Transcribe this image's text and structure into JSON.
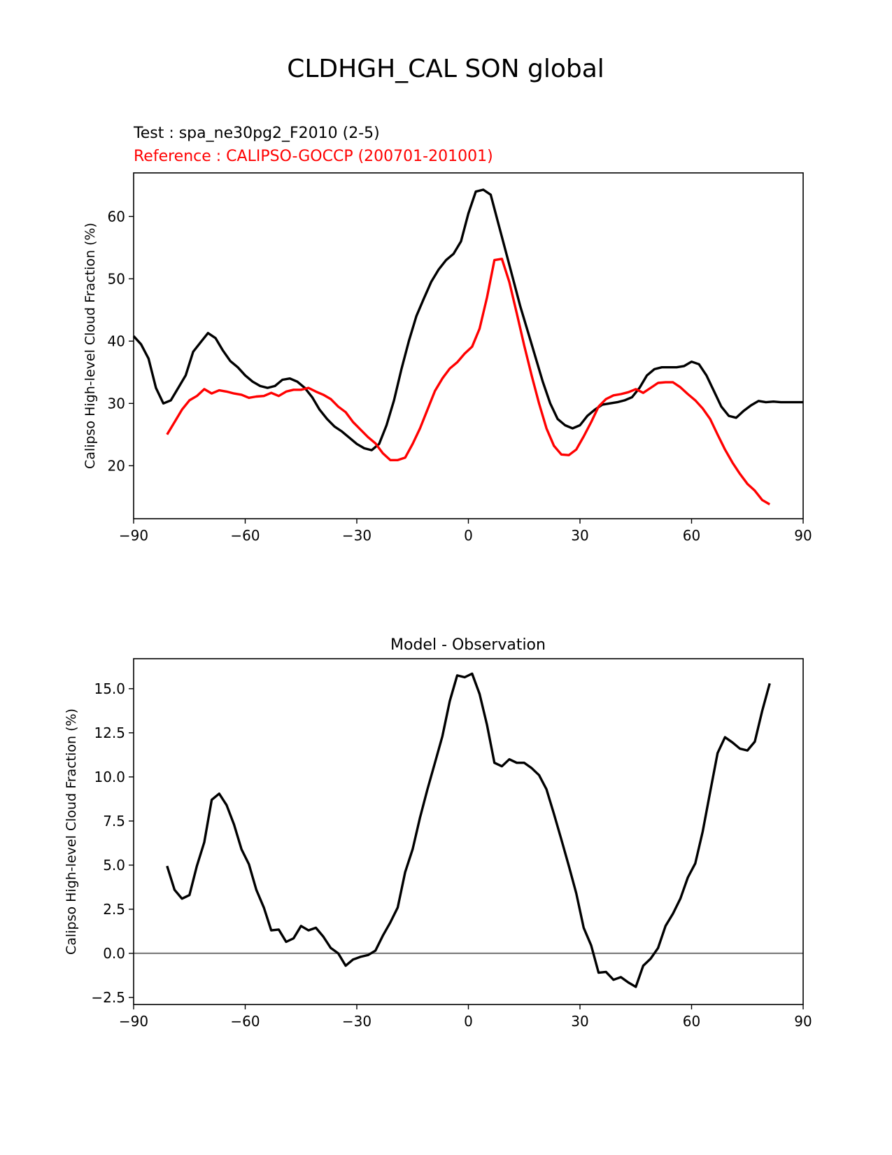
{
  "figure": {
    "title": "CLDHGH_CAL SON global",
    "test_label": "Test : spa_ne30pg2_F2010 (2-5)",
    "reference_label": "Reference : CALIPSO-GOCCP (200701-201001)",
    "colors": {
      "test": "#000000",
      "reference": "#ff0000",
      "zero_line": "#808080"
    }
  },
  "chart_data": [
    {
      "type": "line",
      "title": "",
      "xlabel": "",
      "ylabel": "Calipso High-level Cloud Fraction (%)",
      "xlim": [
        -90,
        90
      ],
      "ylim": [
        11.5,
        67
      ],
      "xticks": [
        -90,
        -60,
        -30,
        0,
        30,
        60,
        90
      ],
      "xtick_labels": [
        "−90",
        "−60",
        "−30",
        "0",
        "30",
        "60",
        "90"
      ],
      "yticks": [
        20,
        30,
        40,
        50,
        60
      ],
      "ytick_labels": [
        "20",
        "30",
        "40",
        "50",
        "60"
      ],
      "series": [
        {
          "name": "Test",
          "color": "#000000",
          "x": [
            -90,
            -88,
            -86,
            -84,
            -82,
            -80,
            -78,
            -76,
            -74,
            -72,
            -70,
            -68,
            -66,
            -64,
            -62,
            -60,
            -58,
            -56,
            -54,
            -52,
            -50,
            -48,
            -46,
            -44,
            -42,
            -40,
            -38,
            -36,
            -34,
            -32,
            -30,
            -28,
            -26,
            -24,
            -22,
            -20,
            -18,
            -16,
            -14,
            -12,
            -10,
            -8,
            -6,
            -4,
            -2,
            0,
            2,
            4,
            6,
            8,
            10,
            12,
            14,
            16,
            18,
            20,
            22,
            24,
            26,
            28,
            30,
            32,
            34,
            36,
            38,
            40,
            42,
            44,
            46,
            48,
            50,
            52,
            54,
            56,
            58,
            60,
            62,
            64,
            66,
            68,
            70,
            72,
            74,
            76,
            78,
            80,
            82,
            84,
            86,
            88,
            90
          ],
          "y": [
            40.8,
            39.5,
            37.2,
            32.5,
            30.0,
            30.5,
            32.5,
            34.5,
            38.3,
            39.8,
            41.3,
            40.5,
            38.5,
            36.8,
            35.8,
            34.5,
            33.5,
            32.8,
            32.5,
            32.8,
            33.8,
            34.0,
            33.5,
            32.5,
            31.0,
            29.0,
            27.5,
            26.3,
            25.5,
            24.5,
            23.5,
            22.8,
            22.5,
            23.5,
            26.5,
            30.5,
            35.5,
            40.0,
            44.0,
            46.8,
            49.5,
            51.5,
            53.0,
            54.0,
            56.0,
            60.5,
            64.0,
            64.3,
            63.5,
            59.0,
            54.5,
            50.0,
            45.5,
            41.5,
            37.5,
            33.5,
            30.0,
            27.5,
            26.5,
            26.0,
            26.5,
            28.0,
            29.0,
            29.8,
            30.0,
            30.2,
            30.5,
            31.0,
            32.5,
            34.5,
            35.5,
            35.8,
            35.8,
            35.8,
            36.0,
            36.7,
            36.3,
            34.5,
            32.0,
            29.5,
            28.0,
            27.7,
            28.8,
            29.7,
            30.4,
            30.2,
            30.3,
            30.2,
            30.2,
            30.2,
            30.2
          ]
        },
        {
          "name": "Reference",
          "color": "#ff0000",
          "x": [
            -81,
            -79,
            -77,
            -75,
            -73,
            -71,
            -69,
            -67,
            -65,
            -63,
            -61,
            -59,
            -57,
            -55,
            -53,
            -51,
            -49,
            -47,
            -45,
            -43,
            -41,
            -39,
            -37,
            -35,
            -33,
            -31,
            -29,
            -27,
            -25,
            -23,
            -21,
            -19,
            -17,
            -15,
            -13,
            -11,
            -9,
            -7,
            -5,
            -3,
            -1,
            1,
            3,
            5,
            7,
            9,
            11,
            13,
            15,
            17,
            19,
            21,
            23,
            25,
            27,
            29,
            31,
            33,
            35,
            37,
            39,
            41,
            43,
            45,
            47,
            49,
            51,
            53,
            55,
            57,
            59,
            61,
            63,
            65,
            67,
            69,
            71,
            73,
            75,
            77,
            79,
            81
          ],
          "y": [
            25.0,
            27.0,
            29.0,
            30.5,
            31.2,
            32.3,
            31.6,
            32.1,
            31.9,
            31.6,
            31.4,
            30.9,
            31.1,
            31.2,
            31.7,
            31.2,
            31.9,
            32.2,
            32.2,
            32.5,
            31.9,
            31.4,
            30.7,
            29.5,
            28.6,
            27.0,
            25.8,
            24.6,
            23.6,
            22.0,
            20.9,
            20.9,
            21.3,
            23.5,
            26.0,
            29.0,
            32.0,
            34.0,
            35.6,
            36.6,
            38.0,
            39.1,
            42.0,
            47.0,
            53.0,
            53.2,
            49.5,
            44.5,
            39.3,
            34.5,
            30.0,
            26.0,
            23.2,
            21.8,
            21.7,
            22.6,
            24.7,
            27.0,
            29.5,
            30.7,
            31.3,
            31.5,
            31.8,
            32.3,
            31.7,
            32.5,
            33.3,
            33.4,
            33.4,
            32.6,
            31.5,
            30.5,
            29.2,
            27.5,
            25.0,
            22.6,
            20.5,
            18.7,
            17.1,
            16.0,
            14.5,
            13.8
          ]
        }
      ]
    },
    {
      "type": "line",
      "title": "Model - Observation",
      "xlabel": "",
      "ylabel": "Calipso High-level Cloud Fraction (%)",
      "xlim": [
        -90,
        90
      ],
      "ylim": [
        -2.9,
        16.7
      ],
      "xticks": [
        -90,
        -60,
        -30,
        0,
        30,
        60,
        90
      ],
      "xtick_labels": [
        "−90",
        "−60",
        "−30",
        "0",
        "30",
        "60",
        "90"
      ],
      "yticks": [
        -2.5,
        0.0,
        2.5,
        5.0,
        7.5,
        10.0,
        12.5,
        15.0
      ],
      "ytick_labels": [
        "−2.5",
        "0.0",
        "2.5",
        "5.0",
        "7.5",
        "10.0",
        "12.5",
        "15.0"
      ],
      "zero_line": 0,
      "series": [
        {
          "name": "Model - Observation",
          "color": "#000000",
          "x": [
            -81,
            -79,
            -77,
            -75,
            -73,
            -71,
            -69,
            -67,
            -65,
            -63,
            -61,
            -59,
            -57,
            -55,
            -53,
            -51,
            -49,
            -47,
            -45,
            -43,
            -41,
            -39,
            -37,
            -35,
            -33,
            -31,
            -29,
            -27,
            -25,
            -23,
            -21,
            -19,
            -17,
            -15,
            -13,
            -11,
            -9,
            -7,
            -5,
            -3,
            -1,
            1,
            3,
            5,
            7,
            9,
            11,
            13,
            15,
            17,
            19,
            21,
            23,
            25,
            27,
            29,
            31,
            33,
            35,
            37,
            39,
            41,
            43,
            45,
            47,
            49,
            51,
            53,
            55,
            57,
            59,
            61,
            63,
            65,
            67,
            69,
            71,
            73,
            75,
            77,
            79,
            81
          ],
          "y": [
            4.95,
            3.6,
            3.1,
            3.3,
            4.95,
            6.3,
            8.7,
            9.05,
            8.4,
            7.3,
            5.9,
            5.05,
            3.6,
            2.6,
            1.3,
            1.35,
            0.65,
            0.85,
            1.55,
            1.3,
            1.45,
            0.95,
            0.3,
            0.0,
            -0.7,
            -0.35,
            -0.2,
            -0.1,
            0.15,
            1.0,
            1.75,
            2.6,
            4.6,
            5.9,
            7.7,
            9.3,
            10.8,
            12.3,
            14.3,
            15.75,
            15.65,
            15.85,
            14.7,
            12.95,
            10.8,
            10.6,
            11.0,
            10.8,
            10.8,
            10.5,
            10.1,
            9.3,
            7.9,
            6.45,
            4.95,
            3.4,
            1.45,
            0.45,
            -1.1,
            -1.05,
            -1.5,
            -1.35,
            -1.65,
            -1.9,
            -0.7,
            -0.3,
            0.3,
            1.55,
            2.25,
            3.1,
            4.3,
            5.1,
            6.9,
            9.15,
            11.35,
            12.25,
            11.95,
            11.6,
            11.5,
            12.0,
            13.75,
            15.3
          ]
        }
      ]
    }
  ]
}
